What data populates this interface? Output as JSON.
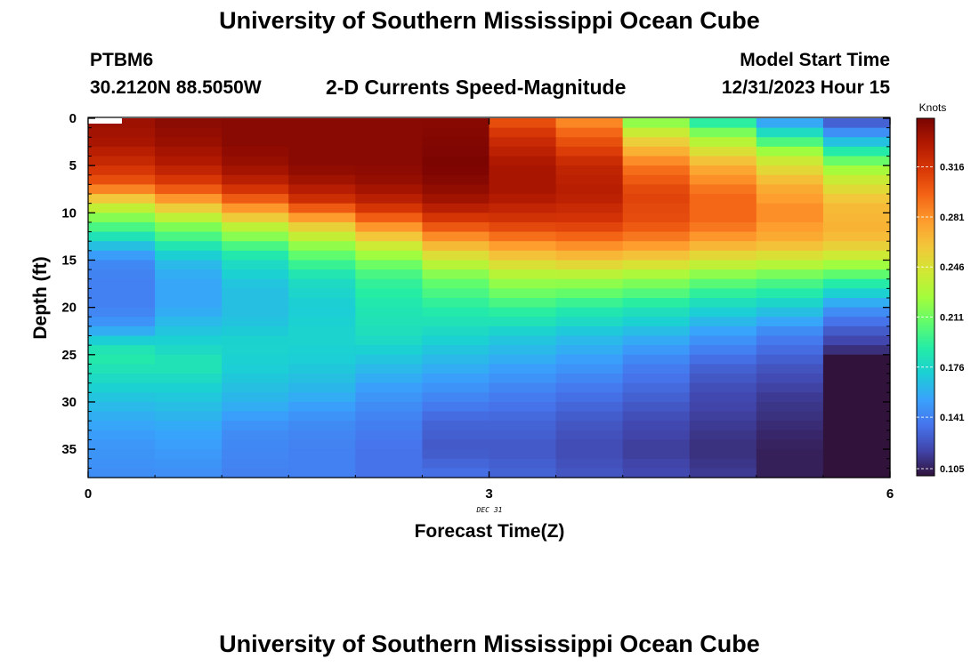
{
  "page": {
    "title": "University of Southern Mississippi Ocean Cube",
    "title_bottom": "University of Southern Mississippi Ocean Cube",
    "station": "PTBM6",
    "coords": "30.2120N  88.5050W",
    "chart_title": "2-D Currents Speed-Magnitude",
    "model_start_label": "Model Start Time",
    "model_start_value": "12/31/2023 Hour 15"
  },
  "chart_data": {
    "type": "heatmap",
    "title": "2-D Currents Speed-Magnitude",
    "xlabel": "Forecast Time(Z)",
    "ylabel": "Depth (ft)",
    "date_label": "DEC 31",
    "x_ticks": [
      0,
      3,
      6
    ],
    "x_tick_labels": [
      "0",
      "3",
      "6"
    ],
    "xlim": [
      0,
      6
    ],
    "y_ticks": [
      0,
      5,
      10,
      15,
      20,
      25,
      30,
      35
    ],
    "y_tick_labels": [
      "0",
      "5",
      "10",
      "15",
      "20",
      "25",
      "30",
      "35"
    ],
    "ylim": [
      0,
      38
    ],
    "colorbar_label": "Knots",
    "colorbar_ticks": [
      0.105,
      0.141,
      0.176,
      0.211,
      0.246,
      0.281,
      0.316
    ],
    "colorbar_tick_labels": [
      "0.105",
      "0.141",
      "0.176",
      "0.211",
      "0.246",
      "0.281",
      "0.316"
    ],
    "colorbar_range": [
      0.1,
      0.35
    ],
    "time_columns": [
      0.25,
      0.75,
      1.25,
      1.75,
      2.25,
      2.75,
      3.25,
      3.75,
      4.25,
      4.75,
      5.25,
      5.75
    ],
    "depth_profiles": [
      {
        "t": 0.0,
        "points": [
          [
            0.5,
            0.34
          ],
          [
            2.5,
            0.33
          ],
          [
            5,
            0.3
          ],
          [
            7,
            0.27
          ],
          [
            8.5,
            0.23
          ],
          [
            10,
            0.2
          ],
          [
            11.5,
            0.175
          ],
          [
            13.5,
            0.145
          ],
          [
            15,
            0.135
          ],
          [
            17,
            0.125
          ],
          [
            20,
            0.125
          ],
          [
            21.5,
            0.14
          ],
          [
            23,
            0.165
          ],
          [
            24.5,
            0.19
          ],
          [
            27,
            0.17
          ],
          [
            31,
            0.155
          ],
          [
            34,
            0.15
          ],
          [
            38,
            0.14
          ]
        ]
      },
      {
        "t": 0.25,
        "points": [
          [
            0,
            0.34
          ],
          [
            2.5,
            0.335
          ],
          [
            5,
            0.32
          ],
          [
            7,
            0.3
          ],
          [
            8.5,
            0.26
          ],
          [
            10,
            0.225
          ],
          [
            11.5,
            0.2
          ],
          [
            13.5,
            0.165
          ],
          [
            15,
            0.145
          ],
          [
            17,
            0.14
          ],
          [
            20,
            0.14
          ],
          [
            22,
            0.15
          ],
          [
            23,
            0.165
          ],
          [
            25,
            0.19
          ],
          [
            28,
            0.175
          ],
          [
            31,
            0.16
          ],
          [
            34,
            0.15
          ],
          [
            38,
            0.145
          ]
        ]
      },
      {
        "t": 0.75,
        "points": [
          [
            0,
            0.345
          ],
          [
            2.5,
            0.34
          ],
          [
            5,
            0.33
          ],
          [
            7,
            0.31
          ],
          [
            8.5,
            0.28
          ],
          [
            10,
            0.245
          ],
          [
            11.5,
            0.215
          ],
          [
            13.5,
            0.185
          ],
          [
            15,
            0.165
          ],
          [
            17,
            0.155
          ],
          [
            20,
            0.155
          ],
          [
            22,
            0.165
          ],
          [
            24,
            0.175
          ],
          [
            26,
            0.185
          ],
          [
            29,
            0.17
          ],
          [
            33,
            0.155
          ],
          [
            38,
            0.145
          ]
        ]
      },
      {
        "t": 1.25,
        "points": [
          [
            0,
            0.345
          ],
          [
            2.5,
            0.345
          ],
          [
            5,
            0.34
          ],
          [
            7,
            0.325
          ],
          [
            8.5,
            0.3
          ],
          [
            10,
            0.27
          ],
          [
            11.5,
            0.235
          ],
          [
            13.5,
            0.2
          ],
          [
            15,
            0.18
          ],
          [
            18,
            0.165
          ],
          [
            21,
            0.165
          ],
          [
            24,
            0.175
          ],
          [
            27,
            0.17
          ],
          [
            30,
            0.16
          ],
          [
            33,
            0.145
          ],
          [
            38,
            0.14
          ]
        ]
      },
      {
        "t": 1.75,
        "points": [
          [
            0,
            0.345
          ],
          [
            5,
            0.345
          ],
          [
            7,
            0.335
          ],
          [
            8.5,
            0.32
          ],
          [
            10,
            0.29
          ],
          [
            11.5,
            0.255
          ],
          [
            13.5,
            0.22
          ],
          [
            15,
            0.2
          ],
          [
            17,
            0.18
          ],
          [
            20,
            0.17
          ],
          [
            23,
            0.175
          ],
          [
            26,
            0.17
          ],
          [
            29,
            0.16
          ],
          [
            32,
            0.145
          ],
          [
            35,
            0.14
          ],
          [
            38,
            0.14
          ]
        ]
      },
      {
        "t": 2.25,
        "points": [
          [
            0,
            0.345
          ],
          [
            5,
            0.345
          ],
          [
            7,
            0.34
          ],
          [
            9,
            0.325
          ],
          [
            11,
            0.29
          ],
          [
            13,
            0.25
          ],
          [
            15,
            0.215
          ],
          [
            17,
            0.195
          ],
          [
            20,
            0.185
          ],
          [
            23,
            0.18
          ],
          [
            26,
            0.165
          ],
          [
            29,
            0.15
          ],
          [
            32,
            0.14
          ],
          [
            35,
            0.135
          ],
          [
            38,
            0.135
          ]
        ]
      },
      {
        "t": 2.75,
        "points": [
          [
            0,
            0.345
          ],
          [
            5,
            0.35
          ],
          [
            7,
            0.345
          ],
          [
            9,
            0.335
          ],
          [
            11,
            0.31
          ],
          [
            13,
            0.275
          ],
          [
            15,
            0.24
          ],
          [
            17,
            0.21
          ],
          [
            20,
            0.19
          ],
          [
            23,
            0.175
          ],
          [
            26,
            0.16
          ],
          [
            29,
            0.145
          ],
          [
            32,
            0.13
          ],
          [
            35,
            0.125
          ],
          [
            38,
            0.135
          ]
        ]
      },
      {
        "t": 3.25,
        "points": [
          [
            0,
            0.3
          ],
          [
            2,
            0.32
          ],
          [
            5,
            0.335
          ],
          [
            8,
            0.335
          ],
          [
            11,
            0.315
          ],
          [
            13,
            0.285
          ],
          [
            15,
            0.255
          ],
          [
            17,
            0.225
          ],
          [
            20,
            0.195
          ],
          [
            23,
            0.17
          ],
          [
            26,
            0.155
          ],
          [
            29,
            0.14
          ],
          [
            32,
            0.13
          ],
          [
            35,
            0.125
          ],
          [
            38,
            0.13
          ]
        ]
      },
      {
        "t": 3.75,
        "points": [
          [
            0,
            0.28
          ],
          [
            2,
            0.3
          ],
          [
            5,
            0.325
          ],
          [
            8,
            0.33
          ],
          [
            11,
            0.315
          ],
          [
            13,
            0.29
          ],
          [
            15,
            0.26
          ],
          [
            17,
            0.225
          ],
          [
            20,
            0.19
          ],
          [
            23,
            0.165
          ],
          [
            26,
            0.15
          ],
          [
            29,
            0.135
          ],
          [
            32,
            0.125
          ],
          [
            35,
            0.12
          ],
          [
            38,
            0.125
          ]
        ]
      },
      {
        "t": 4.25,
        "points": [
          [
            0,
            0.21
          ],
          [
            2,
            0.25
          ],
          [
            5,
            0.29
          ],
          [
            8,
            0.31
          ],
          [
            11,
            0.305
          ],
          [
            13,
            0.285
          ],
          [
            15,
            0.255
          ],
          [
            17,
            0.22
          ],
          [
            20,
            0.185
          ],
          [
            23,
            0.16
          ],
          [
            26,
            0.14
          ],
          [
            29,
            0.13
          ],
          [
            32,
            0.12
          ],
          [
            35,
            0.115
          ],
          [
            38,
            0.12
          ]
        ]
      },
      {
        "t": 4.75,
        "points": [
          [
            0,
            0.18
          ],
          [
            2,
            0.225
          ],
          [
            5,
            0.27
          ],
          [
            8,
            0.295
          ],
          [
            11,
            0.295
          ],
          [
            13,
            0.275
          ],
          [
            15,
            0.245
          ],
          [
            17,
            0.21
          ],
          [
            20,
            0.175
          ],
          [
            23,
            0.15
          ],
          [
            26,
            0.13
          ],
          [
            29,
            0.12
          ],
          [
            32,
            0.115
          ],
          [
            35,
            0.11
          ],
          [
            38,
            0.115
          ]
        ]
      },
      {
        "t": 5.25,
        "points": [
          [
            0,
            0.145
          ],
          [
            2,
            0.19
          ],
          [
            4,
            0.235
          ],
          [
            7,
            0.27
          ],
          [
            10,
            0.285
          ],
          [
            13,
            0.27
          ],
          [
            15,
            0.24
          ],
          [
            17,
            0.205
          ],
          [
            20,
            0.17
          ],
          [
            23,
            0.14
          ],
          [
            26,
            0.125
          ],
          [
            29,
            0.115
          ],
          [
            32,
            0.11
          ],
          [
            35,
            0.105
          ],
          [
            38,
            0.105
          ]
        ]
      },
      {
        "t": 5.75,
        "points": [
          [
            0,
            0.12
          ],
          [
            2,
            0.155
          ],
          [
            4,
            0.2
          ],
          [
            6,
            0.235
          ],
          [
            9,
            0.265
          ],
          [
            12,
            0.27
          ],
          [
            14,
            0.25
          ],
          [
            16,
            0.215
          ],
          [
            18,
            0.18
          ],
          [
            20,
            0.15
          ],
          [
            22,
            0.13
          ],
          [
            24,
            0.115
          ],
          [
            25.5,
            0.1
          ],
          [
            30,
            0.095
          ],
          [
            34,
            0.09
          ],
          [
            37.5,
            0.085
          ],
          [
            38,
            0.07
          ]
        ]
      },
      {
        "t": 6.0,
        "points": [
          [
            0,
            0.12
          ],
          [
            2,
            0.155
          ],
          [
            4,
            0.2
          ],
          [
            6,
            0.235
          ],
          [
            9,
            0.265
          ],
          [
            12,
            0.27
          ],
          [
            14,
            0.25
          ],
          [
            16,
            0.215
          ],
          [
            18,
            0.18
          ],
          [
            20,
            0.15
          ],
          [
            22,
            0.13
          ],
          [
            24,
            0.115
          ],
          [
            25.5,
            0.1
          ],
          [
            30,
            0.095
          ],
          [
            34,
            0.09
          ],
          [
            37.5,
            0.085
          ],
          [
            38,
            0.07
          ]
        ]
      }
    ]
  },
  "colors": {
    "colormap": [
      "#30123b",
      "#4145ab",
      "#4675ed",
      "#39a2fc",
      "#1bcfd4",
      "#24eca6",
      "#61fc6c",
      "#a4fc3b",
      "#d1e834",
      "#f3c63a",
      "#fe9b2d",
      "#f36315",
      "#d93806",
      "#b11901",
      "#7a0402"
    ]
  }
}
